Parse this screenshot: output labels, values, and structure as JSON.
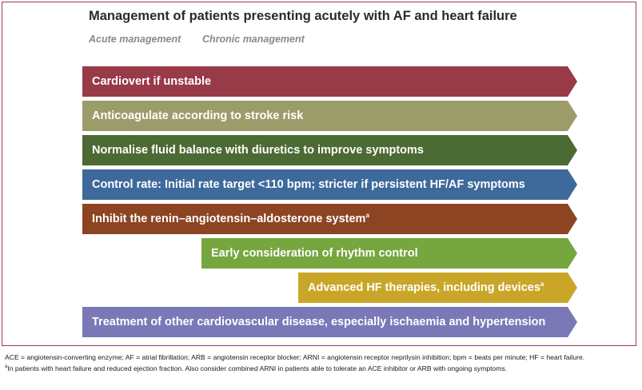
{
  "title": "Management of patients presenting acutely with AF and heart failure",
  "legend": {
    "acute": "Acute management",
    "chronic": "Chronic management"
  },
  "bars": [
    {
      "label": "Cardiovert if unstable",
      "sup": "",
      "color": "#983a48"
    },
    {
      "label": "Anticoagulate according to stroke risk",
      "sup": "",
      "color": "#9c9c6a"
    },
    {
      "label": "Normalise fluid balance with diuretics to improve symptoms",
      "sup": "",
      "color": "#4c6a34"
    },
    {
      "label": "Control rate: Initial rate target <110 bpm; stricter if persistent HF/AF symptoms",
      "sup": "",
      "color": "#3d6a9a"
    },
    {
      "label": "Inhibit the renin–angiotensin–aldosterone system",
      "sup": "a",
      "color": "#8c4422"
    },
    {
      "label": "Early consideration of rhythm control",
      "sup": "",
      "color": "#76a63e"
    },
    {
      "label": "Advanced HF therapies, including devices",
      "sup": "a",
      "color": "#c9a628"
    },
    {
      "label": "Treatment of other cardiovascular disease, especially ischaemia and hypertension",
      "sup": "",
      "color": "#7b78b8"
    }
  ],
  "footnotes": {
    "abbreviations": "ACE = angiotensin-converting enzyme;  AF = atrial fibrillation;  ARB = angiotensin receptor blocker;  ARNI = angiotensin receptor neprilysin inhibition; bpm = beats per minute; HF = heart failure.",
    "note_marker": "a",
    "note": "In patients with heart failure and reduced ejection fraction. Also consider combined ARNI in patients able to tolerate an ACE inhibitor or ARB with ongoing symptoms."
  }
}
